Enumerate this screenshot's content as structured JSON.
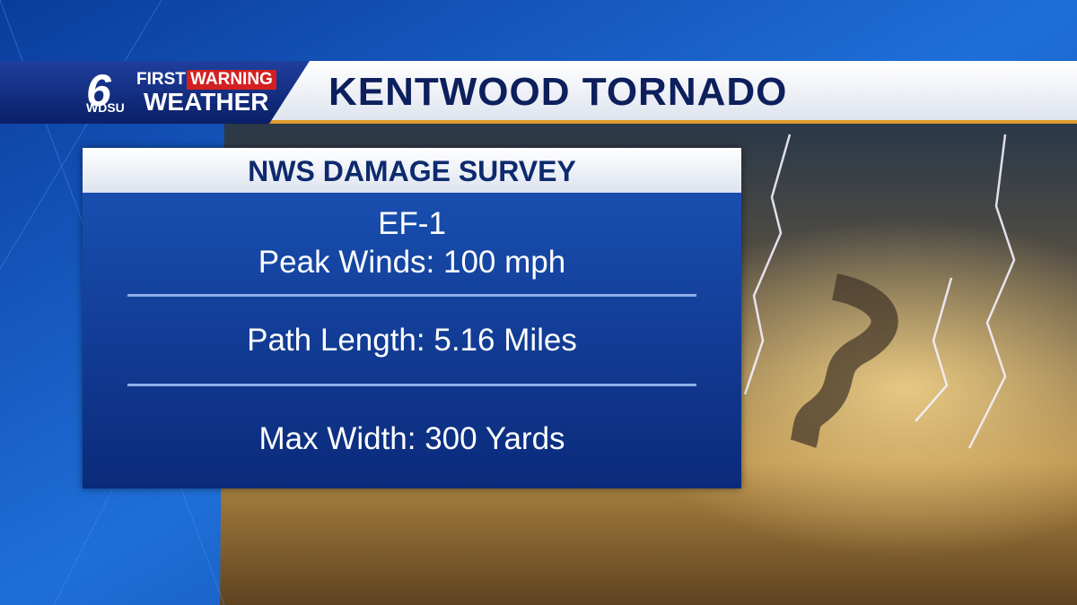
{
  "logo": {
    "number": "6",
    "first": "FIRST",
    "warning": "WARNING",
    "station": "WDSU",
    "weather": "WEATHER"
  },
  "header": {
    "title": "KENTWOOD TORNADO"
  },
  "panel": {
    "title": "NWS DAMAGE SURVEY",
    "rows": [
      "EF-1",
      "Peak Winds: 100 mph",
      "Path Length: 5.16 Miles",
      "Max Width: 300 Yards"
    ]
  }
}
